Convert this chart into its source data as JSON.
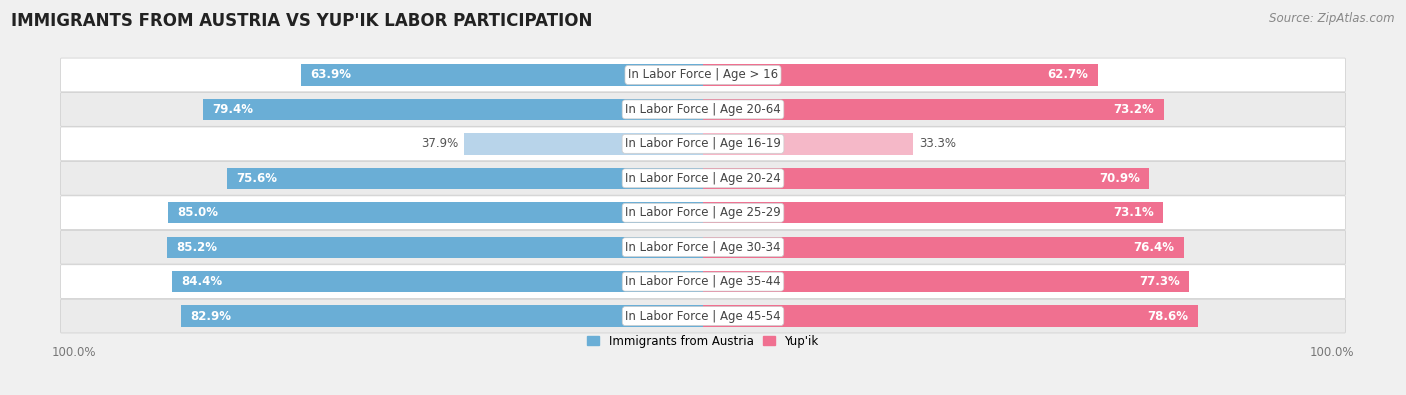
{
  "title": "IMMIGRANTS FROM AUSTRIA VS YUP'IK LABOR PARTICIPATION",
  "source": "Source: ZipAtlas.com",
  "categories": [
    "In Labor Force | Age > 16",
    "In Labor Force | Age 20-64",
    "In Labor Force | Age 16-19",
    "In Labor Force | Age 20-24",
    "In Labor Force | Age 25-29",
    "In Labor Force | Age 30-34",
    "In Labor Force | Age 35-44",
    "In Labor Force | Age 45-54"
  ],
  "austria_values": [
    63.9,
    79.4,
    37.9,
    75.6,
    85.0,
    85.2,
    84.4,
    82.9
  ],
  "yupik_values": [
    62.7,
    73.2,
    33.3,
    70.9,
    73.1,
    76.4,
    77.3,
    78.6
  ],
  "austria_color": "#6aaed6",
  "austria_color_light": "#b8d4ea",
  "yupik_color": "#f07090",
  "yupik_color_light": "#f5b8c8",
  "bar_height": 0.62,
  "background_color": "#f0f0f0",
  "row_bg_even": "#f8f8f8",
  "row_bg_odd": "#e8e8e8",
  "legend_austria": "Immigrants from Austria",
  "legend_yupik": "Yup'ik",
  "title_fontsize": 12,
  "label_fontsize": 8.5,
  "tick_fontsize": 8.5,
  "source_fontsize": 8.5
}
